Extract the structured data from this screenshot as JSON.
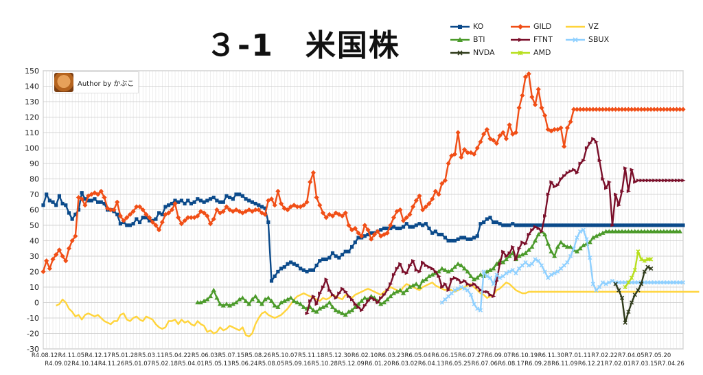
{
  "title": "３-1　米国株",
  "author": {
    "text": "Author by かぶこ"
  },
  "colors": {
    "KO": "#0b4a8a",
    "GILD": "#f04e16",
    "VZ": "#ffd43b",
    "BTI": "#4b9a2a",
    "FTNT": "#7a0f2a",
    "SBUX": "#8fd0ff",
    "NVDA": "#2f3a1a",
    "AMD": "#b7df1c"
  },
  "chart_data": {
    "type": "line",
    "ylim": [
      -30,
      150
    ],
    "yticks": [
      -30,
      -20,
      -10,
      0,
      10,
      20,
      30,
      40,
      50,
      60,
      70,
      80,
      90,
      100,
      110,
      120,
      130,
      140,
      150
    ],
    "n_points": 200,
    "x_labels_row1": [
      "R4.08.12",
      "R4.11.05",
      "R4.12.17",
      "R5.01.28",
      "R5.03.11",
      "R5.04.22",
      "R5.06.03",
      "R5.07.15",
      "R5.08.26",
      "R5.10.07",
      "R5.11.18",
      "R5.12.30",
      "R6.02.10",
      "R6.03.23",
      "R6.05.04",
      "R6.06.15",
      "R6.07.27",
      "R6.09.07",
      "R6.10.19",
      "R6.11.30",
      "R7.01.11",
      "R7.02.22",
      "R7.04.05",
      "R7.05.20"
    ],
    "x_labels_row2": [
      "R4.09.02",
      "R4.10.14",
      "R4.11.26",
      "R5.01.07",
      "R5.02.18",
      "R5.04.01",
      "R5.05.13",
      "R5.06.24",
      "R5.08.05",
      "R5.09.16",
      "R5.10.28",
      "R5.12.09",
      "R6.01.20",
      "R6.03.02",
      "R6.04.13",
      "R6.05.25",
      "R6.07.06",
      "R6.08.17",
      "R6.09.28",
      "R6.11.09",
      "R6.12.21",
      "R7.02.01",
      "R7.03.15",
      "R7.04.26"
    ],
    "series": [
      {
        "name": "KO",
        "marker": "square",
        "start": 0,
        "values": [
          63,
          70,
          66,
          65,
          63,
          69,
          64,
          63,
          58,
          54,
          57,
          60,
          71,
          67,
          66,
          66,
          67,
          65,
          65,
          64,
          60,
          60,
          59,
          57,
          51,
          52,
          50,
          50,
          51,
          54,
          52,
          55,
          55,
          53,
          53,
          54,
          58,
          57,
          62,
          63,
          64,
          66,
          65,
          66,
          64,
          66,
          64,
          65,
          67,
          66,
          65,
          66,
          67,
          68,
          66,
          65,
          65,
          69,
          68,
          67,
          70,
          70,
          69,
          67,
          66,
          65,
          64,
          63,
          62,
          61,
          52,
          14,
          17,
          20,
          22,
          23,
          25,
          26,
          25,
          24,
          22,
          21,
          20,
          21,
          21,
          24,
          27,
          28,
          28,
          29,
          32,
          30,
          29,
          31,
          33,
          33,
          36,
          39,
          42,
          42,
          43,
          44,
          45,
          45,
          46,
          47,
          48,
          48,
          48,
          49,
          48,
          48,
          49,
          51,
          49,
          49,
          50,
          51,
          50,
          51,
          48,
          45,
          46,
          44,
          44,
          42,
          40,
          40,
          40,
          41,
          42,
          42,
          41,
          41,
          42,
          43,
          51,
          52,
          54,
          55,
          52,
          52,
          51,
          50,
          50,
          50,
          51,
          50,
          50,
          50,
          50,
          50,
          50,
          50,
          50,
          50,
          50,
          50,
          50,
          50,
          50,
          50,
          50,
          50,
          50,
          50,
          50,
          50,
          50,
          50,
          50,
          50,
          50,
          50,
          50,
          50,
          50,
          50,
          50,
          50,
          50,
          50,
          50,
          50,
          50,
          50,
          50,
          50,
          50,
          50,
          50,
          50,
          50,
          50,
          50,
          50,
          50,
          50,
          50,
          50
        ]
      },
      {
        "name": "GILD",
        "marker": "diamond",
        "start": 0,
        "values": [
          20,
          27,
          22,
          28,
          31,
          34,
          30,
          27,
          35,
          40,
          43,
          68,
          67,
          63,
          69,
          70,
          71,
          70,
          72,
          68,
          61,
          60,
          60,
          65,
          56,
          53,
          55,
          57,
          59,
          62,
          62,
          60,
          57,
          55,
          52,
          50,
          47,
          52,
          57,
          58,
          60,
          64,
          55,
          51,
          53,
          55,
          55,
          55,
          56,
          59,
          58,
          56,
          51,
          54,
          60,
          58,
          59,
          62,
          60,
          59,
          60,
          59,
          58,
          59,
          60,
          59,
          60,
          60,
          58,
          57,
          66,
          67,
          63,
          72,
          64,
          61,
          60,
          62,
          63,
          62,
          62,
          63,
          65,
          78,
          84,
          68,
          63,
          58,
          55,
          57,
          56,
          58,
          57,
          56,
          58,
          50,
          47,
          48,
          45,
          43,
          50,
          47,
          41,
          44,
          46,
          43,
          44,
          45,
          50,
          55,
          59,
          60,
          53,
          55,
          57,
          62,
          66,
          69,
          60,
          62,
          64,
          67,
          72,
          70,
          77,
          79,
          90,
          95,
          96,
          110,
          94,
          99,
          97,
          97,
          96,
          100,
          104,
          109,
          112,
          106,
          105,
          103,
          108,
          110,
          106,
          115,
          109,
          110,
          126,
          134,
          146,
          148,
          133,
          128,
          138,
          126,
          121,
          112,
          111,
          112,
          112,
          113,
          101,
          113,
          117,
          125,
          125,
          125,
          125,
          125,
          125,
          125,
          125,
          125,
          125,
          125,
          125,
          125,
          125,
          125,
          125,
          125,
          125,
          125,
          125,
          125,
          125,
          125,
          125,
          125,
          125,
          125,
          125,
          125,
          125,
          125,
          125,
          125,
          125,
          125
        ]
      },
      {
        "name": "VZ",
        "marker": "none",
        "start": 4,
        "values": [
          -2,
          -1,
          2,
          0,
          -4,
          -6,
          -9,
          -8,
          -11,
          -8,
          -7,
          -8,
          -9,
          -8,
          -10,
          -12,
          -13,
          -14,
          -12,
          -12,
          -8,
          -7,
          -11,
          -12,
          -10,
          -9,
          -11,
          -12,
          -9,
          -10,
          -11,
          -14,
          -16,
          -17,
          -16,
          -12,
          -12,
          -11,
          -14,
          -11,
          -13,
          -12,
          -14,
          -15,
          -12,
          -14,
          -15,
          -19,
          -18,
          -20,
          -19,
          -16,
          -18,
          -17,
          -15,
          -16,
          -17,
          -18,
          -16,
          -21,
          -22,
          -20,
          -14,
          -10,
          -7,
          -6,
          -8,
          -9,
          -10,
          -9,
          -8,
          -6,
          -4,
          -1,
          2,
          4,
          5,
          6,
          5,
          4,
          3,
          2,
          1,
          3,
          2,
          3,
          5,
          4,
          3,
          2,
          5,
          4,
          3,
          5,
          6,
          7,
          8,
          9,
          8,
          7,
          6,
          5,
          7,
          8,
          10,
          9,
          8,
          7,
          10,
          12,
          11,
          10,
          9,
          8,
          10,
          11,
          12,
          13,
          11,
          10,
          9,
          8,
          9,
          8,
          7,
          8,
          9,
          10,
          11,
          12,
          10,
          8,
          6,
          5,
          3,
          4,
          5,
          8,
          9,
          11,
          13,
          12,
          10,
          8,
          7,
          6,
          6,
          7,
          7,
          7,
          7,
          7,
          7,
          7,
          7,
          7,
          7,
          7,
          7,
          7,
          7,
          7,
          7,
          7,
          7,
          7,
          7,
          7,
          7,
          7,
          7,
          7,
          7,
          7,
          7,
          7,
          7,
          7,
          7,
          7,
          7,
          7,
          7,
          7,
          7,
          7,
          7,
          7,
          7,
          7,
          7,
          7,
          7,
          7,
          7,
          7,
          7,
          7,
          7,
          7,
          7
        ]
      },
      {
        "name": "BTI",
        "marker": "triangle",
        "start": 48,
        "values": [
          0,
          0,
          1,
          2,
          4,
          8,
          3,
          -1,
          -2,
          -1,
          -2,
          -1,
          0,
          2,
          3,
          1,
          -1,
          2,
          4,
          1,
          -1,
          2,
          3,
          1,
          -2,
          -3,
          0,
          1,
          2,
          3,
          1,
          0,
          -1,
          -3,
          -4,
          -3,
          -5,
          -6,
          -4,
          -3,
          -2,
          0,
          -3,
          -5,
          -6,
          -7,
          -8,
          -6,
          -5,
          -3,
          -1,
          1,
          3,
          2,
          4,
          3,
          1,
          -1,
          0,
          2,
          4,
          6,
          7,
          8,
          6,
          8,
          10,
          11,
          12,
          10,
          14,
          15,
          17,
          18,
          19,
          20,
          22,
          21,
          20,
          21,
          23,
          25,
          24,
          22,
          20,
          17,
          15,
          16,
          18,
          17,
          20,
          21,
          22,
          25,
          27,
          26,
          28,
          30,
          32,
          28,
          30,
          31,
          32,
          34,
          36,
          40,
          44,
          46,
          44,
          38,
          33,
          30,
          36,
          39,
          37,
          36,
          36,
          34,
          33,
          35,
          37,
          38,
          39,
          42,
          43,
          44,
          45,
          46,
          46,
          46,
          46,
          46,
          46,
          46,
          46,
          46,
          46,
          46,
          46,
          46,
          46,
          46,
          46,
          46,
          46,
          46,
          46,
          46,
          46,
          46,
          46
        ]
      },
      {
        "name": "FTNT",
        "marker": "arrow",
        "start": 82,
        "values": [
          -7,
          1,
          4,
          -1,
          6,
          10,
          15,
          8,
          5,
          3,
          6,
          9,
          7,
          4,
          2,
          -1,
          -3,
          -5,
          -2,
          1,
          3,
          2,
          0,
          3,
          5,
          8,
          12,
          18,
          22,
          25,
          20,
          19,
          24,
          27,
          21,
          20,
          26,
          24,
          23,
          22,
          20,
          17,
          10,
          12,
          8,
          15,
          16,
          15,
          13,
          14,
          12,
          11,
          12,
          10,
          8,
          7,
          7,
          5,
          4,
          14,
          25,
          33,
          30,
          32,
          36,
          28,
          35,
          39,
          38,
          44,
          47,
          49,
          48,
          46,
          56,
          70,
          78,
          75,
          76,
          80,
          82,
          84,
          85,
          86,
          84,
          90,
          92,
          100,
          103,
          106,
          104,
          92,
          80,
          74,
          78,
          50,
          70,
          63,
          72,
          87,
          72,
          86,
          78,
          79,
          79,
          79,
          79,
          79,
          79,
          79,
          79,
          79,
          79,
          79,
          79,
          79,
          79,
          79
        ]
      },
      {
        "name": "SBUX",
        "marker": "x",
        "start": 124,
        "values": [
          0,
          2,
          4,
          6,
          8,
          9,
          10,
          9,
          8,
          5,
          -1,
          -4,
          -5,
          20,
          17,
          16,
          12,
          18,
          16,
          17,
          19,
          20,
          21,
          19,
          22,
          24,
          26,
          24,
          25,
          28,
          27,
          24,
          20,
          16,
          18,
          19,
          20,
          22,
          24,
          26,
          30,
          35,
          42,
          46,
          47,
          41,
          29,
          12,
          8,
          10,
          13,
          12,
          13,
          14,
          13,
          13,
          13,
          13,
          13,
          13,
          13,
          13,
          13,
          13,
          13,
          13,
          13,
          13,
          13,
          13,
          13,
          13,
          13,
          13,
          13,
          13
        ]
      },
      {
        "name": "NVDA",
        "marker": "x",
        "start": 178,
        "values": [
          12,
          8,
          3,
          -13,
          -6,
          0,
          5,
          8,
          12,
          20,
          23,
          22
        ]
      },
      {
        "name": "AMD",
        "marker": "asterisk",
        "start": 181,
        "values": [
          10,
          13,
          16,
          21,
          33,
          28,
          27,
          28,
          28
        ]
      }
    ]
  }
}
